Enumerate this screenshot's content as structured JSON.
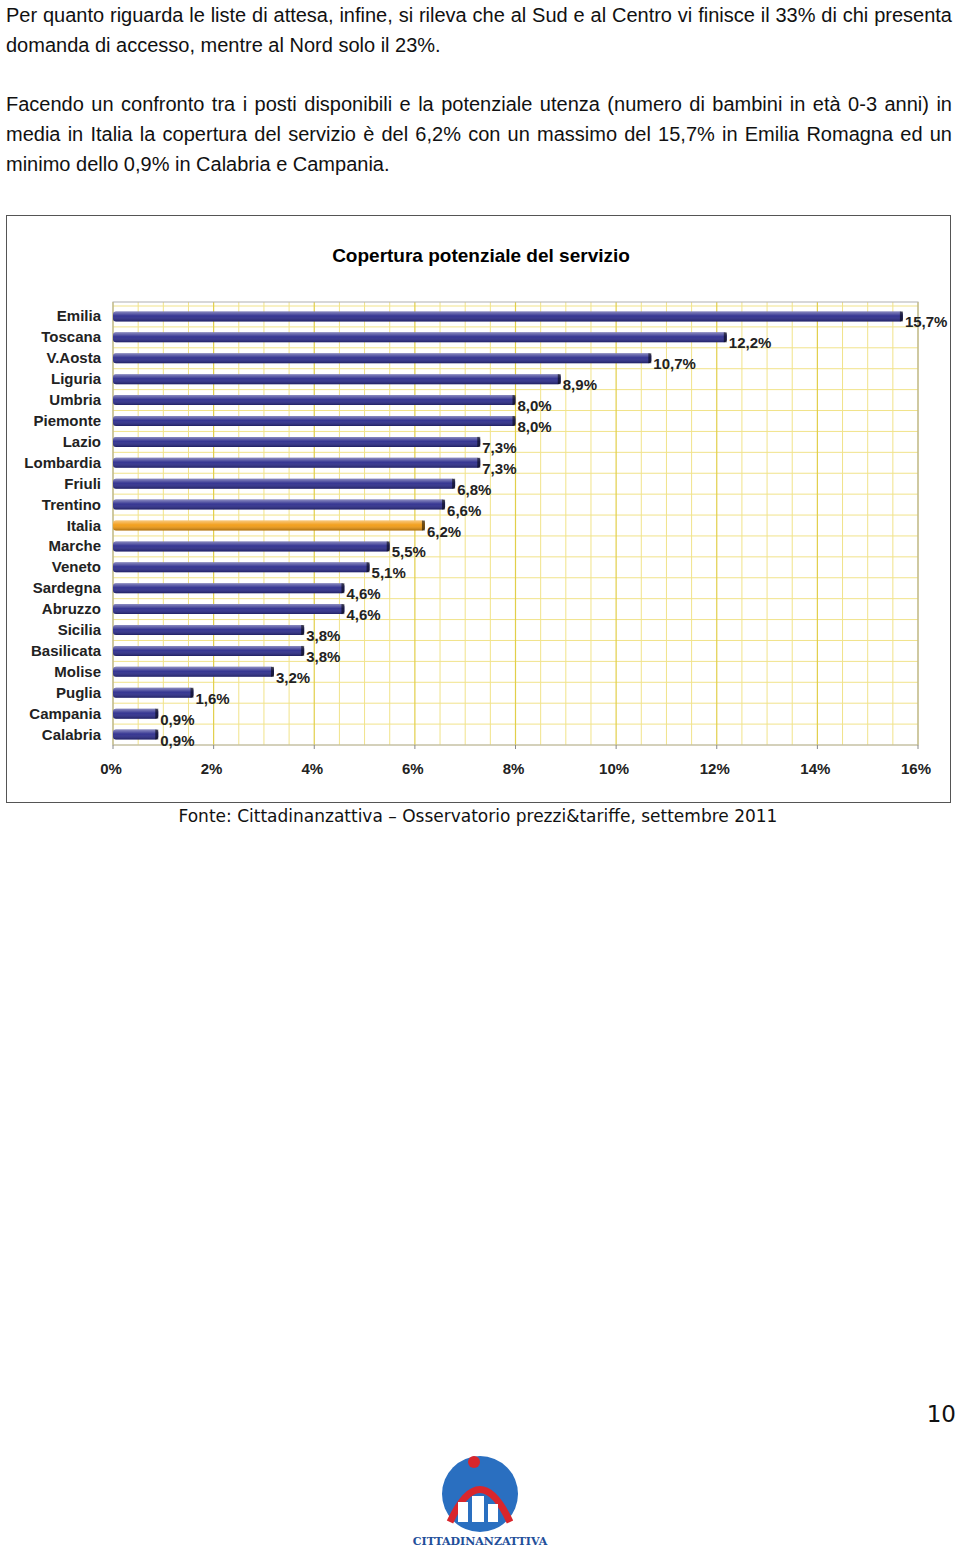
{
  "paragraphs": [
    "Per quanto riguarda le liste di attesa, infine, si rileva che al Sud e al Centro vi finisce il 33% di chi presenta domanda di accesso, mentre al Nord solo il 23%.",
    "Facendo un confronto tra i posti disponibili e la potenziale utenza (numero di bambini in età 0-3 anni) in media in Italia la copertura del servizio è del 6,2% con un massimo del 15,7% in Emilia Romagna ed un minimo dello 0,9% in Calabria e Campania."
  ],
  "chart_data": {
    "type": "bar",
    "title": "Copertura potenziale del servizio",
    "orientation": "horizontal",
    "categories": [
      "Emilia",
      "Toscana",
      "V.Aosta",
      "Liguria",
      "Umbria",
      "Piemonte",
      "Lazio",
      "Lombardia",
      "Friuli",
      "Trentino",
      "Italia",
      "Marche",
      "Veneto",
      "Sardegna",
      "Abruzzo",
      "Sicilia",
      "Basilicata",
      "Molise",
      "Puglia",
      "Campania",
      "Calabria"
    ],
    "values": [
      15.7,
      12.2,
      10.7,
      8.9,
      8.0,
      8.0,
      7.3,
      7.3,
      6.8,
      6.6,
      6.2,
      5.5,
      5.1,
      4.6,
      4.6,
      3.8,
      3.8,
      3.2,
      1.6,
      0.9,
      0.9
    ],
    "value_labels": [
      "15,7%",
      "12,2%",
      "10,7%",
      "8,9%",
      "8,0%",
      "8,0%",
      "7,3%",
      "7,3%",
      "6,8%",
      "6,6%",
      "6,2%",
      "5,5%",
      "5,1%",
      "4,6%",
      "4,6%",
      "3,8%",
      "3,8%",
      "3,2%",
      "1,6%",
      "0,9%",
      "0,9%"
    ],
    "colors": [
      "#2b2b8c",
      "#2b2b8c",
      "#2b2b8c",
      "#2b2b8c",
      "#2b2b8c",
      "#2b2b8c",
      "#2b2b8c",
      "#2b2b8c",
      "#2b2b8c",
      "#2b2b8c",
      "#f29b12",
      "#2b2b8c",
      "#2b2b8c",
      "#2b2b8c",
      "#2b2b8c",
      "#2b2b8c",
      "#2b2b8c",
      "#2b2b8c",
      "#2b2b8c",
      "#2b2b8c",
      "#2b2b8c"
    ],
    "xlim": [
      0,
      16
    ],
    "xticks": [
      {
        "value": 0,
        "label": "0%"
      },
      {
        "value": 2,
        "label": "2%"
      },
      {
        "value": 4,
        "label": "4%"
      },
      {
        "value": 6,
        "label": "6%"
      },
      {
        "value": 8,
        "label": "8%"
      },
      {
        "value": 10,
        "label": "10%"
      },
      {
        "value": 12,
        "label": "12%"
      },
      {
        "value": 14,
        "label": "14%"
      },
      {
        "value": 16,
        "label": "16%"
      }
    ],
    "grid": true,
    "data_labels": true
  },
  "source": "Fonte: Cittadinanzattiva – Osservatorio prezzi&tariffe, settembre 2011",
  "page_number": "10",
  "logo_text": "CITTADINANZATTIVA"
}
